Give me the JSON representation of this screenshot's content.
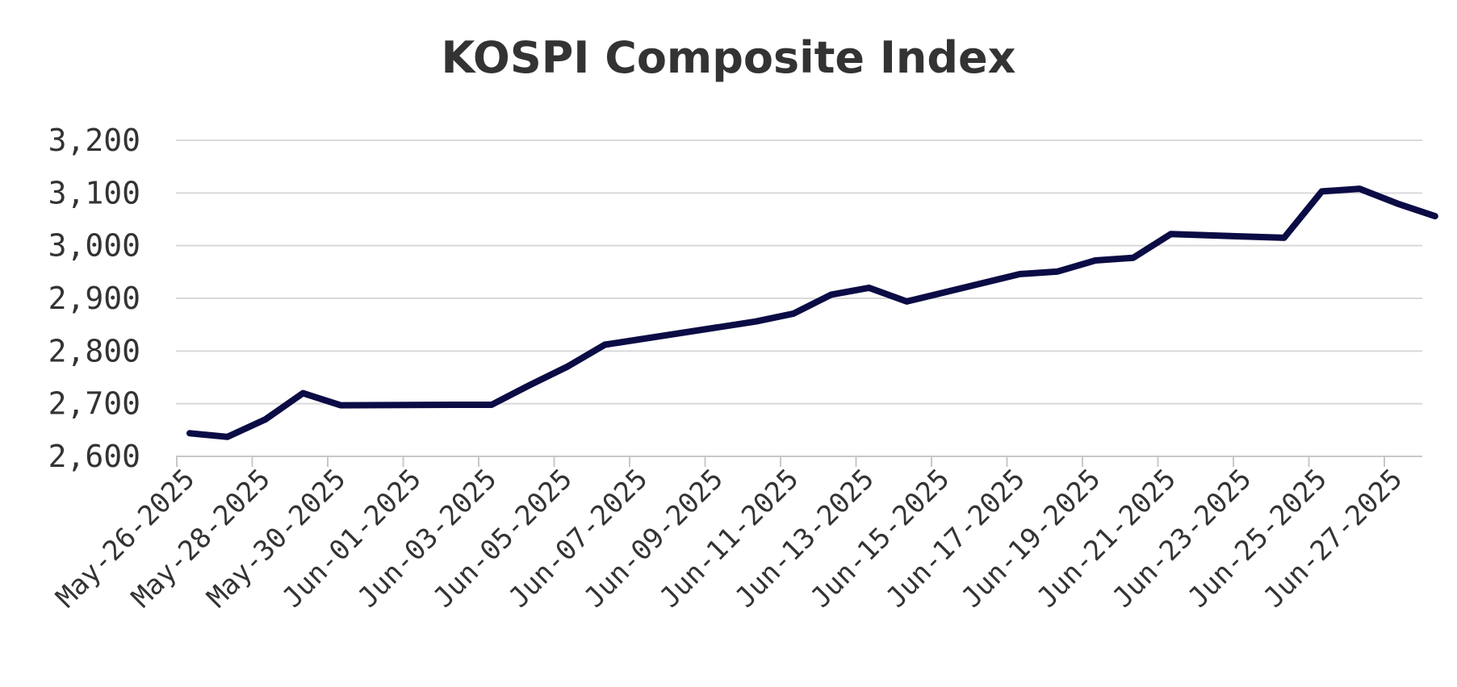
{
  "chart_data": {
    "type": "line",
    "title": "KOSPI Composite Index",
    "xlabel": "",
    "ylabel": "",
    "ylim": [
      2600,
      3200
    ],
    "yticks": [
      2600,
      2700,
      2800,
      2900,
      3000,
      3100,
      3200
    ],
    "ytick_labels": [
      "2,600",
      "2,700",
      "2,800",
      "2,900",
      "3,000",
      "3,100",
      "3,200"
    ],
    "xlim": [
      "May-26-2025",
      "Jun-27-2025"
    ],
    "xtick_labels": [
      "May-26-2025",
      "May-28-2025",
      "May-30-2025",
      "Jun-01-2025",
      "Jun-03-2025",
      "Jun-05-2025",
      "Jun-07-2025",
      "Jun-09-2025",
      "Jun-11-2025",
      "Jun-13-2025",
      "Jun-15-2025",
      "Jun-17-2025",
      "Jun-19-2025",
      "Jun-21-2025",
      "Jun-23-2025",
      "Jun-25-2025",
      "Jun-27-2025"
    ],
    "grid": true,
    "legend": false,
    "series": [
      {
        "color": "#0b0b45",
        "points": [
          {
            "x": "May-26-2025",
            "y": 2644
          },
          {
            "x": "May-27-2025",
            "y": 2637
          },
          {
            "x": "May-28-2025",
            "y": 2670
          },
          {
            "x": "May-29-2025",
            "y": 2720
          },
          {
            "x": "May-30-2025",
            "y": 2697
          },
          {
            "x": "Jun-02-2025",
            "y": 2698
          },
          {
            "x": "Jun-03-2025",
            "y": 2698
          },
          {
            "x": "Jun-04-2025",
            "y": 2735
          },
          {
            "x": "Jun-05-2025",
            "y": 2770
          },
          {
            "x": "Jun-06-2025",
            "y": 2812
          },
          {
            "x": "Jun-10-2025",
            "y": 2856
          },
          {
            "x": "Jun-11-2025",
            "y": 2871
          },
          {
            "x": "Jun-12-2025",
            "y": 2907
          },
          {
            "x": "Jun-13-2025",
            "y": 2920
          },
          {
            "x": "Jun-14-2025",
            "y": 2894
          },
          {
            "x": "Jun-17-2025",
            "y": 2946
          },
          {
            "x": "Jun-18-2025",
            "y": 2951
          },
          {
            "x": "Jun-19-2025",
            "y": 2972
          },
          {
            "x": "Jun-20-2025",
            "y": 2977
          },
          {
            "x": "Jun-21-2025",
            "y": 3022
          },
          {
            "x": "Jun-24-2025",
            "y": 3015
          },
          {
            "x": "Jun-25-2025",
            "y": 3103
          },
          {
            "x": "Jun-26-2025",
            "y": 3108
          },
          {
            "x": "Jun-27-2025",
            "y": 3080
          },
          {
            "x": "Jun-28-2025",
            "y": 3056
          }
        ]
      }
    ]
  }
}
